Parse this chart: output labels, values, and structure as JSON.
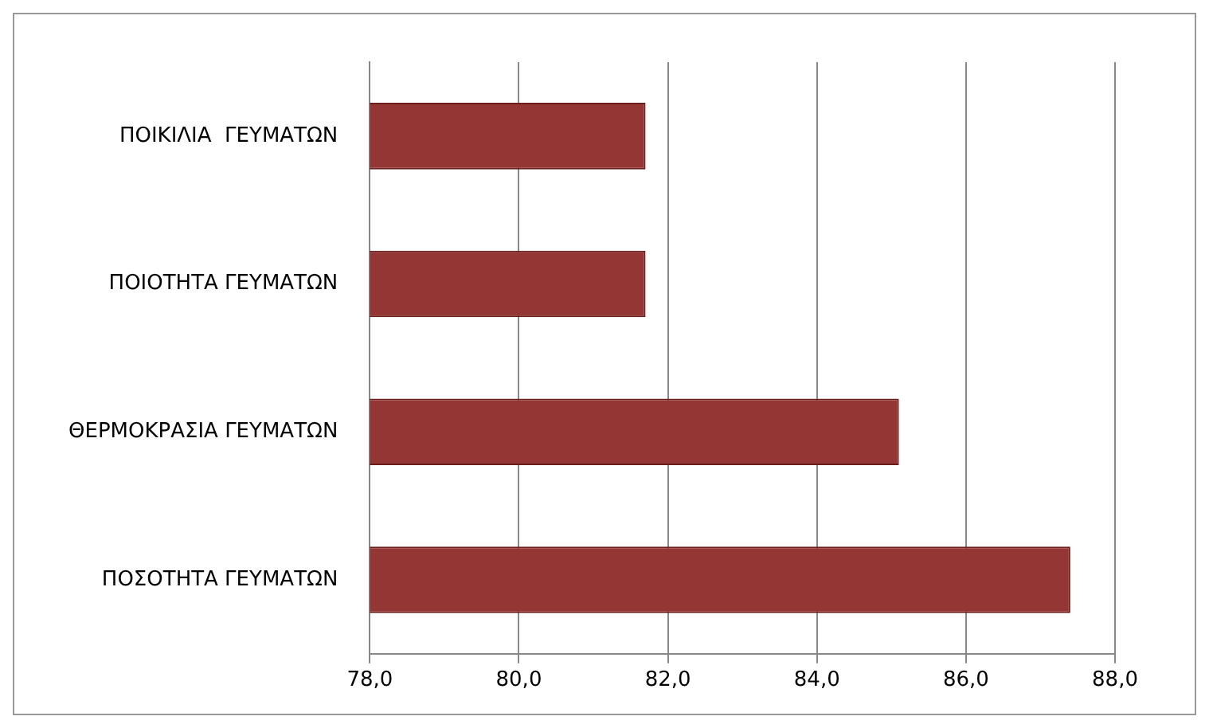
{
  "chart_data": {
    "type": "bar",
    "orientation": "horizontal",
    "categories": [
      "ΠΟΙΚΙΛΙΑ  ΓΕΥΜΑΤΩΝ",
      "ΠΟΙΟΤΗΤΑ ΓΕΥΜΑΤΩΝ",
      "ΘΕΡΜΟΚΡΑΣΙΑ ΓΕΥΜΑΤΩΝ",
      "ΠΟΣΟΤΗΤΑ ΓΕΥΜΑΤΩΝ"
    ],
    "values": [
      81.7,
      81.7,
      85.1,
      87.4
    ],
    "color": "#943634",
    "xlim": [
      78,
      88
    ],
    "xticks": [
      {
        "value": 78,
        "label": "78,0"
      },
      {
        "value": 80,
        "label": "80,0"
      },
      {
        "value": 82,
        "label": "82,0"
      },
      {
        "value": 84,
        "label": "84,0"
      },
      {
        "value": 86,
        "label": "86,0"
      },
      {
        "value": 88,
        "label": "88,0"
      }
    ],
    "grid": "x"
  }
}
